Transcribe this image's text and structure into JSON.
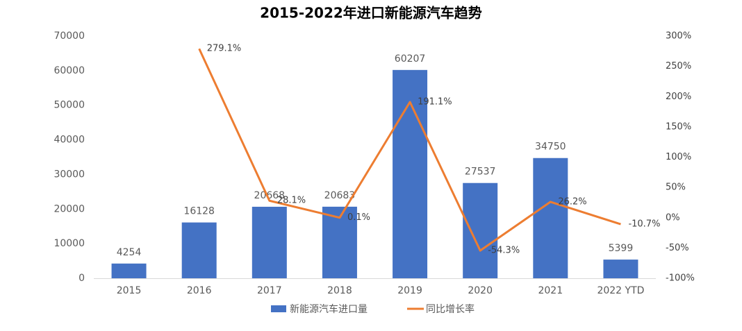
{
  "chart_data": {
    "type": "combo",
    "title": "2015-2022年进口新能源汽车趋势",
    "categories": [
      "2015",
      "2016",
      "2017",
      "2018",
      "2019",
      "2020",
      "2021",
      "2022 YTD"
    ],
    "series": [
      {
        "name": "新能源汽车进口量",
        "type": "bar",
        "color": "#4472c4",
        "values": [
          4254,
          16128,
          20668,
          20683,
          60207,
          27537,
          34750,
          5399
        ]
      },
      {
        "name": "同比增长率",
        "type": "line",
        "axis": "y2",
        "color": "#ed7d31",
        "values": [
          null,
          279.1,
          28.1,
          0.1,
          191.1,
          -54.3,
          26.2,
          -10.7
        ],
        "value_labels": [
          null,
          "279.1%",
          "28.1%",
          "0.1%",
          "191.1%",
          "-54.3%",
          "26.2%",
          "-10.7%"
        ]
      }
    ],
    "ylim": [
      0,
      70000
    ],
    "yticks": [
      0,
      10000,
      20000,
      30000,
      40000,
      50000,
      60000,
      70000
    ],
    "y2lim": [
      -100,
      300
    ],
    "y2ticks": [
      {
        "value": -100,
        "label": "-100%"
      },
      {
        "value": -50,
        "label": "-50%"
      },
      {
        "value": 0,
        "label": "0%"
      },
      {
        "value": 50,
        "label": "50%"
      },
      {
        "value": 100,
        "label": "100%"
      },
      {
        "value": 150,
        "label": "150%"
      },
      {
        "value": 200,
        "label": "200%"
      },
      {
        "value": 250,
        "label": "250%"
      },
      {
        "value": 300,
        "label": "300%"
      }
    ],
    "grid": false,
    "legend": "bottom"
  }
}
